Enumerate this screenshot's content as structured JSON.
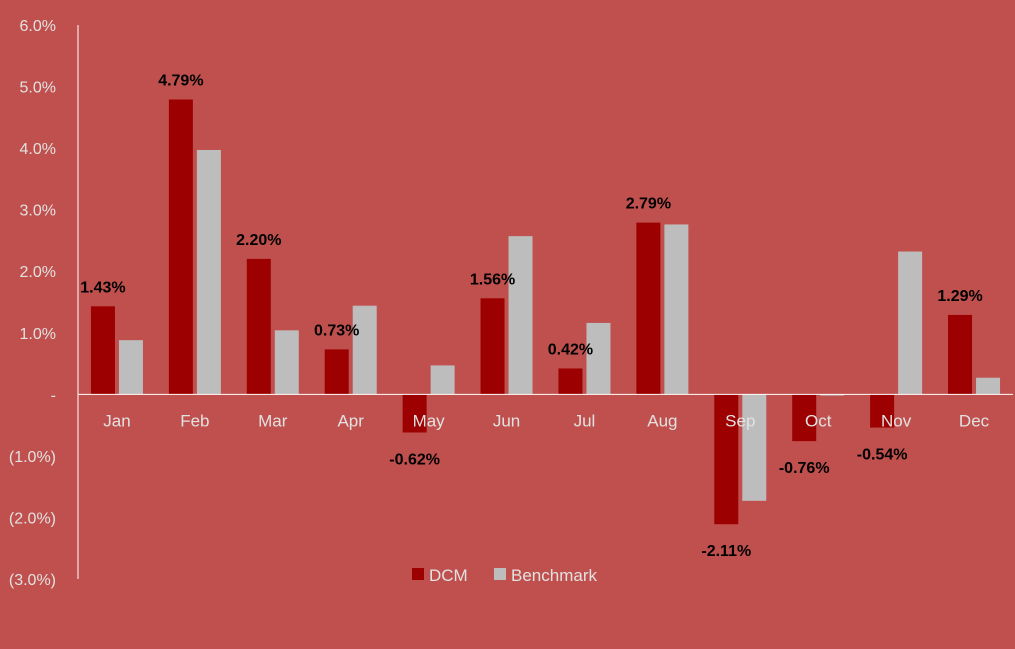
{
  "colors": {
    "background": "#C0504D",
    "dcm": "#9C0000",
    "benchmark": "#BDBDBD",
    "axis_text": "#E2E2E2",
    "data_label": "#000000",
    "axis_line": "#FFFFFF"
  },
  "chart_data": {
    "type": "bar",
    "categories": [
      "Jan",
      "Feb",
      "Mar",
      "Apr",
      "May",
      "Jun",
      "Jul",
      "Aug",
      "Sep",
      "Oct",
      "Nov",
      "Dec"
    ],
    "series": [
      {
        "name": "DCM",
        "values": [
          1.43,
          4.79,
          2.2,
          0.73,
          -0.62,
          1.56,
          0.42,
          2.79,
          -2.11,
          -0.76,
          -0.54,
          1.29
        ],
        "data_labels": [
          "1.43%",
          "4.79%",
          "2.20%",
          "0.73%",
          "-0.62%",
          "1.56%",
          "0.42%",
          "2.79%",
          "-2.11%",
          "-0.76%",
          "-0.54%",
          "1.29%"
        ]
      },
      {
        "name": "Benchmark",
        "values": [
          0.88,
          3.97,
          1.04,
          1.44,
          0.47,
          2.57,
          1.16,
          2.76,
          -1.73,
          -0.02,
          2.32,
          0.27
        ]
      }
    ],
    "ylim": [
      -3.0,
      6.0
    ],
    "yticks": [
      6.0,
      5.0,
      4.0,
      3.0,
      2.0,
      1.0,
      0,
      -1.0,
      -2.0,
      -3.0
    ],
    "ytick_labels": [
      "6.0%",
      "5.0%",
      "4.0%",
      "3.0%",
      "2.0%",
      "1.0%",
      "-",
      "(1.0%)",
      "(2.0%)",
      "(3.0%)"
    ],
    "title": "",
    "xlabel": "",
    "ylabel": "",
    "grid": false,
    "legend_position": "bottom"
  }
}
